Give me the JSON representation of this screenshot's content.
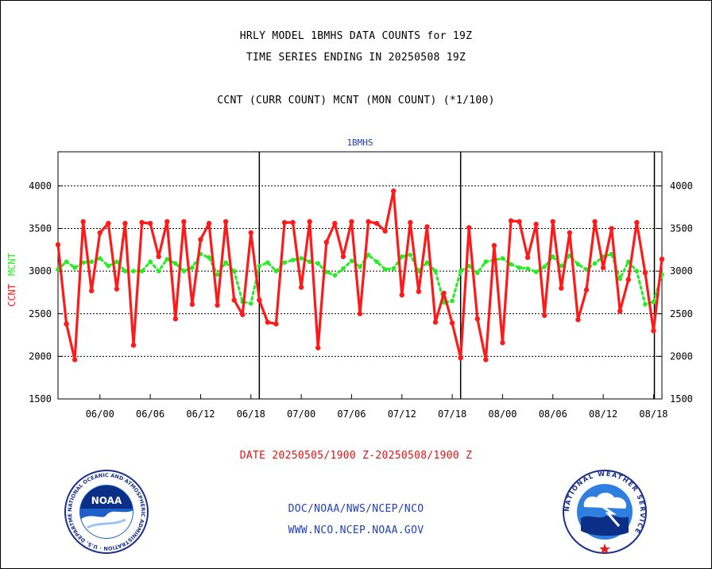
{
  "header": {
    "title1": "HRLY MODEL 1BMHS DATA COUNTS for 19Z",
    "title2": "TIME SERIES ENDING IN 20250508 19Z",
    "title3": "CCNT (CURR COUNT) MCNT (MON COUNT) (*1/100)"
  },
  "footer": {
    "date_range": "DATE 20250505/1900 Z-20250508/1900 Z",
    "link1": "DOC/NOAA/NWS/NCEP/NCO",
    "link2": "WWW.NCO.NCEP.NOAA.GOV",
    "noaa_logo_text": "NOAA",
    "noaa_seal_text": "NATIONAL OCEANIC AND ATMOSPHERIC ADMINISTRATION · U.S. DEPARTMENT OF COMMERCE",
    "nws_seal_text": "NATIONAL WEATHER SERVICE"
  },
  "colors": {
    "ccnt": "#ff1a1a",
    "mcnt": "#22ee22",
    "title_blue": "#1f3fbf",
    "date_red": "#e81010"
  },
  "chart_data": {
    "type": "line",
    "title": "1BMHS",
    "ylabel_left": [
      "CCNT",
      "MCNT"
    ],
    "ylim": [
      1500,
      4400
    ],
    "yticks": [
      1500,
      2000,
      2500,
      3000,
      3500,
      4000
    ],
    "gridlines": [
      2000,
      2500,
      3000,
      3500,
      4000
    ],
    "x_hours_range": [
      19,
      91
    ],
    "xticks": [
      {
        "hour": 24,
        "label": "06/00"
      },
      {
        "hour": 30,
        "label": "06/06"
      },
      {
        "hour": 36,
        "label": "06/12"
      },
      {
        "hour": 42,
        "label": "06/18"
      },
      {
        "hour": 48,
        "label": "07/00"
      },
      {
        "hour": 54,
        "label": "07/06"
      },
      {
        "hour": 60,
        "label": "07/12"
      },
      {
        "hour": 66,
        "label": "07/18"
      },
      {
        "hour": 72,
        "label": "08/00"
      },
      {
        "hour": 78,
        "label": "08/06"
      },
      {
        "hour": 84,
        "label": "08/12"
      },
      {
        "hour": 90,
        "label": "08/18"
      }
    ],
    "day_lines": [
      43,
      67,
      90.1
    ],
    "series": [
      {
        "name": "CCNT",
        "style": "solid",
        "values": [
          3310,
          2380,
          1960,
          3580,
          2770,
          3450,
          3560,
          2790,
          3560,
          2130,
          3570,
          3560,
          3170,
          3580,
          2440,
          3580,
          2610,
          3370,
          3560,
          2600,
          3580,
          2660,
          2490,
          3450,
          2660,
          2400,
          2380,
          3570,
          3570,
          2810,
          3580,
          2100,
          3340,
          3560,
          3170,
          3580,
          2500,
          3580,
          3560,
          3470,
          3940,
          2720,
          3570,
          2760,
          3520,
          2400,
          2740,
          2390,
          1980,
          3510,
          2440,
          1960,
          3300,
          2160,
          3590,
          3580,
          3160,
          3550,
          2480,
          3580,
          2800,
          3450,
          2430,
          2780,
          3580,
          3040,
          3500,
          2530,
          2900,
          3570,
          2980,
          2300,
          3140
        ]
      },
      {
        "name": "MCNT",
        "style": "dotted",
        "values": [
          3020,
          3110,
          3040,
          3100,
          3110,
          3150,
          3060,
          3110,
          3000,
          3000,
          3000,
          3110,
          3000,
          3140,
          3090,
          3000,
          3040,
          3200,
          3160,
          2960,
          3100,
          3000,
          2640,
          2620,
          3060,
          3100,
          3000,
          3100,
          3130,
          3150,
          3110,
          3090,
          2990,
          2950,
          3030,
          3120,
          3050,
          3190,
          3110,
          3020,
          3030,
          3170,
          3190,
          3000,
          3100,
          3000,
          2630,
          2650,
          3000,
          3060,
          2980,
          3110,
          3130,
          3150,
          3080,
          3040,
          3030,
          2990,
          3050,
          3170,
          3060,
          3180,
          3080,
          3020,
          3090,
          3170,
          3200,
          2910,
          3110,
          3000,
          2610,
          2640,
          2960
        ]
      }
    ]
  }
}
